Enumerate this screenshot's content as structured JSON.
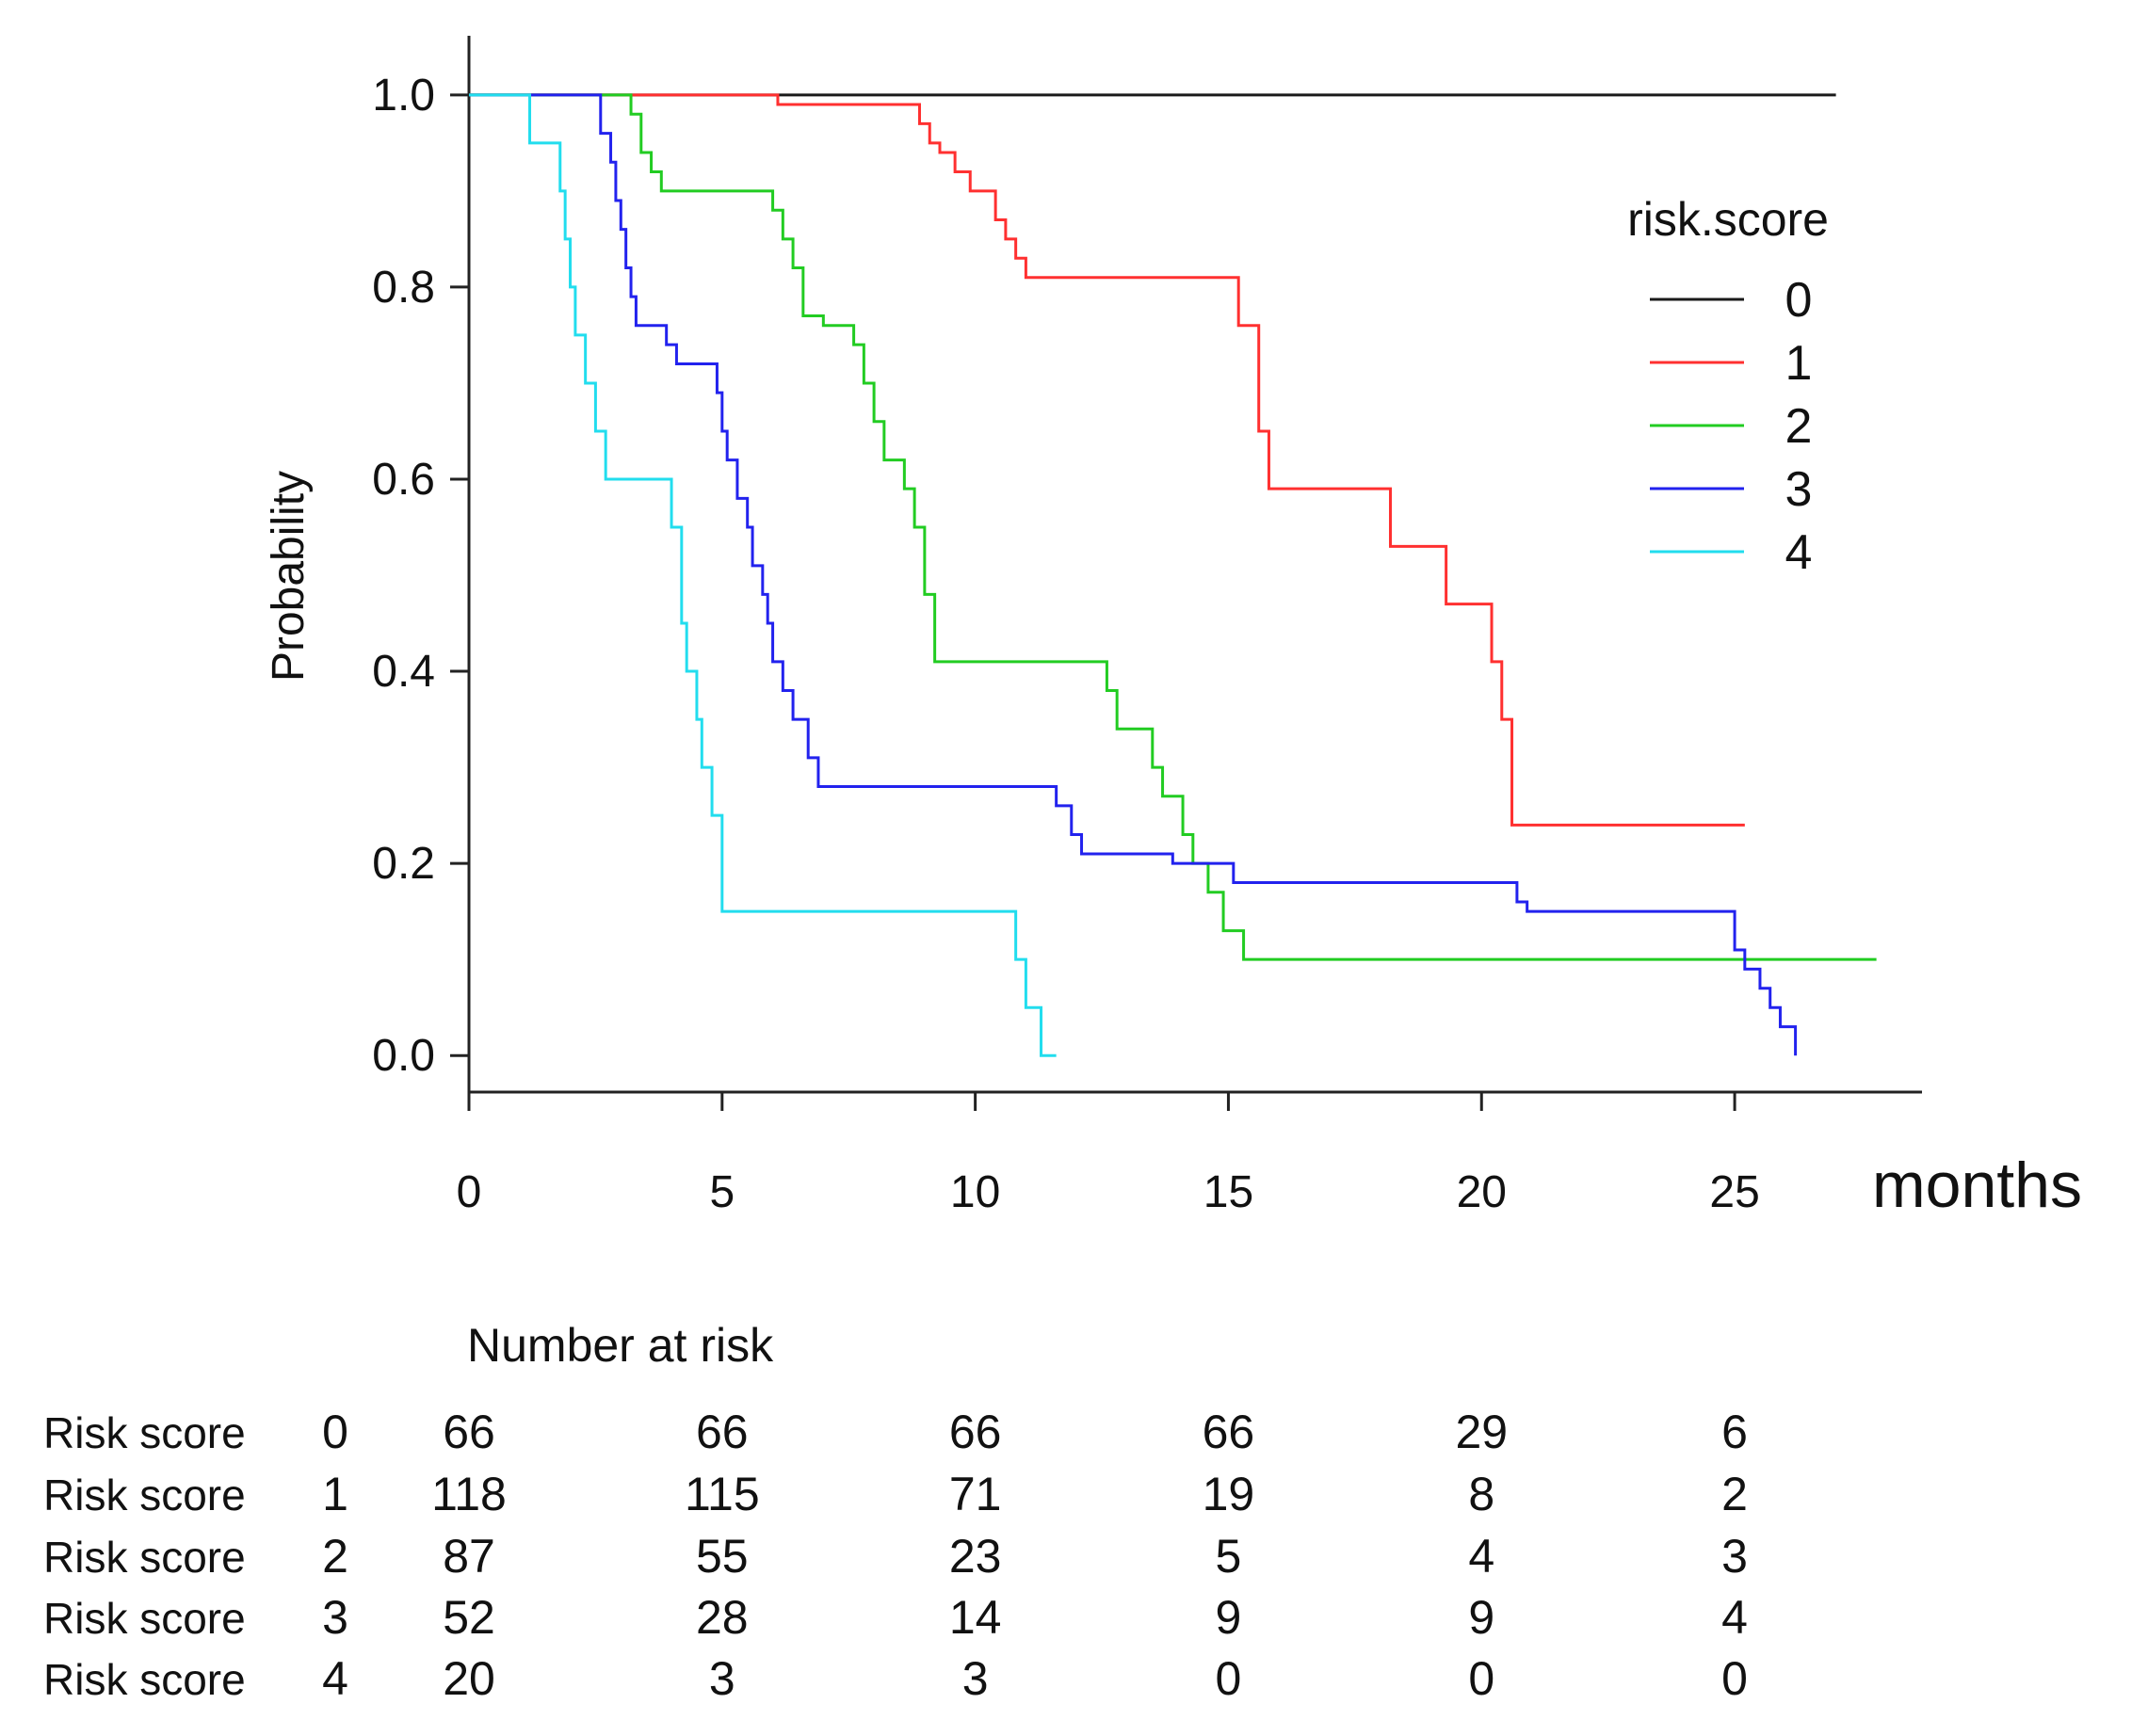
{
  "chart_data": {
    "type": "line",
    "subtype": "kaplan-meier step curves",
    "xlabel": "months",
    "ylabel": "Probability",
    "xlim": [
      0,
      28.7
    ],
    "ylim": [
      -0.038,
      1.04
    ],
    "x_ticks": [
      0,
      5,
      10,
      15,
      20,
      25
    ],
    "x_tick_labels": [
      "0",
      "5",
      "10",
      "15",
      "20",
      "25"
    ],
    "y_ticks": [
      0,
      0.2,
      0.4,
      0.6,
      0.8,
      1
    ],
    "y_tick_labels": [
      "0.0",
      "0.2",
      "0.4",
      "0.6",
      "0.8",
      "1.0"
    ],
    "legend": {
      "title": "risk.score",
      "position": "top-right",
      "entries": [
        "0",
        "1",
        "2",
        "3",
        "4"
      ]
    },
    "series": [
      {
        "name": "0",
        "color": "#1a1a1a",
        "x": [
          0,
          27
        ],
        "y": [
          1,
          1
        ]
      },
      {
        "name": "1",
        "color": "#ff3030",
        "x": [
          0,
          6.1,
          8.9,
          9.1,
          9.3,
          9.6,
          9.9,
          10.4,
          10.6,
          10.8,
          11.0,
          15.2,
          15.6,
          15.8,
          18.2,
          19.3,
          20.2,
          20.4,
          20.6,
          25.2
        ],
        "y": [
          1,
          0.99,
          0.97,
          0.95,
          0.94,
          0.92,
          0.9,
          0.87,
          0.85,
          0.83,
          0.81,
          0.76,
          0.65,
          0.59,
          0.53,
          0.47,
          0.41,
          0.35,
          0.24,
          0.24
        ]
      },
      {
        "name": "2",
        "color": "#22cc22",
        "x": [
          0,
          3.2,
          3.4,
          3.6,
          3.8,
          6.0,
          6.2,
          6.4,
          6.6,
          7.0,
          7.6,
          7.8,
          8.0,
          8.2,
          8.6,
          8.8,
          9.0,
          9.2,
          12.6,
          12.8,
          13.5,
          13.7,
          14.1,
          14.3,
          14.6,
          14.9,
          15.3,
          27.8
        ],
        "y": [
          1,
          0.98,
          0.94,
          0.92,
          0.9,
          0.88,
          0.85,
          0.82,
          0.77,
          0.76,
          0.74,
          0.7,
          0.66,
          0.62,
          0.59,
          0.55,
          0.48,
          0.41,
          0.38,
          0.34,
          0.3,
          0.27,
          0.23,
          0.2,
          0.17,
          0.13,
          0.1,
          0.1
        ]
      },
      {
        "name": "3",
        "color": "#2222ee",
        "x": [
          0,
          1.2,
          2.6,
          2.8,
          2.9,
          3.0,
          3.1,
          3.2,
          3.3,
          3.4,
          3.9,
          4.1,
          4.9,
          5.0,
          5.1,
          5.3,
          5.5,
          5.6,
          5.8,
          5.9,
          6.0,
          6.2,
          6.4,
          6.7,
          6.9,
          11.6,
          11.9,
          12.1,
          12.3,
          13.9,
          15.1,
          20.7,
          20.9,
          25.0,
          25.2,
          25.5,
          25.7,
          25.9,
          26.2
        ],
        "y": [
          1,
          1,
          0.96,
          0.93,
          0.89,
          0.86,
          0.82,
          0.79,
          0.76,
          0.76,
          0.74,
          0.72,
          0.69,
          0.65,
          0.62,
          0.58,
          0.55,
          0.51,
          0.48,
          0.45,
          0.41,
          0.38,
          0.35,
          0.31,
          0.28,
          0.26,
          0.23,
          0.21,
          0.21,
          0.2,
          0.18,
          0.16,
          0.15,
          0.11,
          0.09,
          0.07,
          0.05,
          0.03,
          0.0
        ]
      },
      {
        "name": "4",
        "color": "#22ddee",
        "x": [
          0,
          1.2,
          1.8,
          1.9,
          2.0,
          2.1,
          2.3,
          2.5,
          2.7,
          4.0,
          4.2,
          4.3,
          4.5,
          4.6,
          4.8,
          5.0,
          10.8,
          11.0,
          11.3,
          11.6
        ],
        "y": [
          1,
          0.95,
          0.9,
          0.85,
          0.8,
          0.75,
          0.7,
          0.65,
          0.6,
          0.55,
          0.45,
          0.4,
          0.35,
          0.3,
          0.25,
          0.15,
          0.1,
          0.05,
          0.0,
          0.0
        ]
      }
    ]
  },
  "risk_table": {
    "title": "Number at risk",
    "time_points": [
      0,
      5,
      10,
      15,
      20,
      25
    ],
    "rows": [
      {
        "label": "Risk score",
        "group": "0",
        "counts": [
          "66",
          "66",
          "66",
          "66",
          "29",
          "6"
        ]
      },
      {
        "label": "Risk score",
        "group": "1",
        "counts": [
          "118",
          "115",
          "71",
          "19",
          "8",
          "2"
        ]
      },
      {
        "label": "Risk score",
        "group": "2",
        "counts": [
          "87",
          "55",
          "23",
          "5",
          "4",
          "3"
        ]
      },
      {
        "label": "Risk score",
        "group": "3",
        "counts": [
          "52",
          "28",
          "14",
          "9",
          "9",
          "4"
        ]
      },
      {
        "label": "Risk score",
        "group": "4",
        "counts": [
          "20",
          "3",
          "3",
          "0",
          "0",
          "0"
        ]
      }
    ]
  }
}
